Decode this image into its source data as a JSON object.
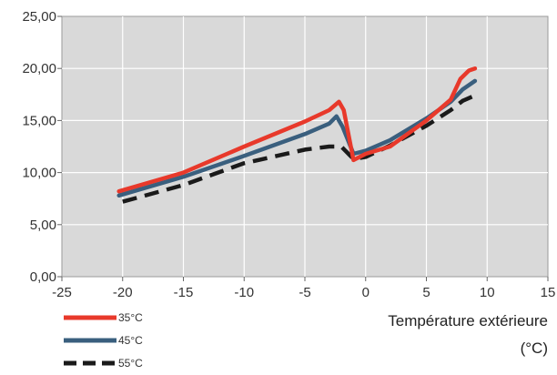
{
  "chart_data": {
    "type": "line",
    "title": "",
    "xlabel": "Température extérieure",
    "xlabel_unit": "(°C)",
    "ylabel": "",
    "xlim": [
      -25,
      15
    ],
    "ylim": [
      0,
      25
    ],
    "x_ticks": [
      "-25",
      "-20",
      "-15",
      "-10",
      "-5",
      "0",
      "5",
      "10",
      "15"
    ],
    "y_ticks": [
      "0,00",
      "5,00",
      "10,00",
      "15,00",
      "20,00",
      "25,00"
    ],
    "grid": true,
    "legend_position": "bottom-left",
    "series": [
      {
        "name": "35°C",
        "color": "#e8392b",
        "dash": "solid",
        "points": [
          [
            -20.3,
            8.2
          ],
          [
            -15,
            10.0
          ],
          [
            -10,
            12.5
          ],
          [
            -5,
            14.9
          ],
          [
            -3,
            16.0
          ],
          [
            -2.2,
            16.8
          ],
          [
            -1.8,
            16.0
          ],
          [
            -1,
            11.2
          ],
          [
            0,
            11.8
          ],
          [
            2,
            12.5
          ],
          [
            5,
            15.0
          ],
          [
            7,
            17.0
          ],
          [
            7.8,
            19.0
          ],
          [
            8.5,
            19.8
          ],
          [
            9,
            20.0
          ]
        ]
      },
      {
        "name": "45°C",
        "color": "#3a5f7e",
        "dash": "solid",
        "points": [
          [
            -20.3,
            7.8
          ],
          [
            -15,
            9.6
          ],
          [
            -10,
            11.6
          ],
          [
            -5,
            13.7
          ],
          [
            -3,
            14.7
          ],
          [
            -2.4,
            15.4
          ],
          [
            -1.9,
            14.4
          ],
          [
            -1,
            11.8
          ],
          [
            0,
            12.1
          ],
          [
            2,
            13.1
          ],
          [
            5,
            15.2
          ],
          [
            7,
            16.8
          ],
          [
            8,
            18.0
          ],
          [
            9,
            18.8
          ]
        ]
      },
      {
        "name": "55°C",
        "color": "#1a1a1a",
        "dash": "dashed",
        "points": [
          [
            -20,
            7.2
          ],
          [
            -15,
            8.8
          ],
          [
            -10,
            10.9
          ],
          [
            -5,
            12.2
          ],
          [
            -3,
            12.5
          ],
          [
            -2,
            12.5
          ],
          [
            -1,
            11.3
          ],
          [
            0,
            11.5
          ],
          [
            2,
            12.6
          ],
          [
            5,
            14.5
          ],
          [
            7,
            16.0
          ],
          [
            8,
            16.9
          ],
          [
            9,
            17.4
          ]
        ]
      }
    ]
  }
}
